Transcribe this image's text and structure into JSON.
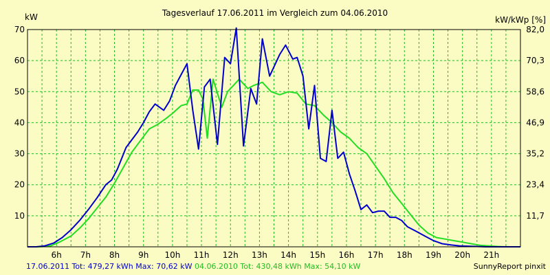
{
  "chart_data": {
    "type": "line",
    "title": "Tagesverlauf 17.06.2011 im Vergleich zum 04.06.2010",
    "ylabel_left": "kW",
    "ylabel_right": "kW/kWp [%]",
    "ylim": [
      0,
      70
    ],
    "yticks_left": [
      "10",
      "20",
      "30",
      "40",
      "50",
      "60",
      "70"
    ],
    "yticks_right": [
      "11,7",
      "23,4",
      "35,2",
      "46,9",
      "58,6",
      "70,3",
      "82,0"
    ],
    "xlim": [
      5.0,
      22.0
    ],
    "xticks": [
      "6h",
      "7h",
      "8h",
      "9h",
      "10h",
      "11h",
      "12h",
      "13h",
      "14h",
      "15h",
      "16h",
      "17h",
      "18h",
      "19h",
      "20h",
      "21h"
    ],
    "grid": true,
    "colors": {
      "background": "#fbfbc4",
      "grid": "#22bb22",
      "series1": "#0000cc",
      "series2": "#22dd22"
    },
    "series": [
      {
        "name": "17.06.2011",
        "x": [
          5.0,
          5.3,
          5.6,
          5.9,
          6.2,
          6.5,
          6.8,
          7.1,
          7.4,
          7.7,
          7.9,
          8.1,
          8.4,
          8.8,
          9.0,
          9.2,
          9.4,
          9.7,
          9.9,
          10.1,
          10.3,
          10.5,
          10.7,
          10.9,
          11.1,
          11.3,
          11.55,
          11.8,
          12.0,
          12.2,
          12.45,
          12.7,
          12.9,
          13.1,
          13.35,
          13.5,
          13.7,
          13.9,
          14.15,
          14.3,
          14.5,
          14.7,
          14.9,
          15.1,
          15.3,
          15.5,
          15.7,
          15.9,
          16.1,
          16.3,
          16.5,
          16.7,
          16.9,
          17.1,
          17.3,
          17.5,
          17.7,
          17.9,
          18.1,
          18.4,
          18.7,
          19.0,
          19.3,
          19.6,
          19.9,
          20.2,
          20.5,
          20.8,
          21.1,
          21.4,
          21.7,
          22.0
        ],
        "values": [
          0,
          0,
          0.3,
          1.2,
          3.0,
          5.5,
          8.5,
          12.0,
          15.8,
          20.0,
          21.5,
          25.0,
          32.0,
          37.0,
          40.0,
          43.5,
          46.0,
          44.0,
          47.0,
          52.0,
          55.5,
          59.0,
          44.0,
          31.5,
          51.5,
          54.0,
          33.0,
          61.0,
          59.0,
          70.5,
          32.5,
          51.0,
          46.0,
          67.0,
          55.0,
          58.0,
          62.0,
          65.0,
          60.5,
          61.0,
          55.0,
          38.0,
          52.0,
          28.5,
          27.5,
          44.0,
          28.5,
          30.5,
          23.5,
          18.0,
          12.0,
          13.5,
          11.0,
          11.5,
          11.5,
          9.5,
          9.5,
          8.5,
          6.5,
          5.0,
          3.5,
          2.0,
          1.0,
          0.6,
          0.3,
          0.2,
          0.1,
          0,
          0,
          0,
          0,
          0
        ]
      },
      {
        "name": "04.06.2010",
        "x": [
          5.0,
          5.4,
          5.8,
          6.1,
          6.5,
          6.8,
          7.1,
          7.4,
          7.7,
          8.0,
          8.3,
          8.6,
          9.0,
          9.2,
          9.5,
          9.8,
          10.0,
          10.3,
          10.5,
          10.7,
          10.9,
          11.05,
          11.2,
          11.4,
          11.7,
          11.9,
          12.1,
          12.3,
          12.6,
          12.8,
          13.1,
          13.4,
          13.7,
          14.0,
          14.3,
          14.6,
          14.9,
          15.2,
          15.5,
          15.8,
          16.1,
          16.4,
          16.7,
          17.0,
          17.3,
          17.6,
          17.9,
          18.2,
          18.5,
          18.8,
          19.1,
          19.4,
          19.7,
          20.0,
          20.3,
          20.6,
          20.9,
          21.2,
          21.5,
          21.8,
          22.0
        ],
        "values": [
          0,
          0,
          0.3,
          1.5,
          3.5,
          6.0,
          9.0,
          12.5,
          16.0,
          20.5,
          25.5,
          30.5,
          35.5,
          38.0,
          39.5,
          41.5,
          43.0,
          45.5,
          46.0,
          50.5,
          50.5,
          47.5,
          35.0,
          54.0,
          45.0,
          50.0,
          52.0,
          54.0,
          51.0,
          52.0,
          53.0,
          50.0,
          49.0,
          50.0,
          49.5,
          46.0,
          45.5,
          42.5,
          40.0,
          37.0,
          35.0,
          32.0,
          30.0,
          26.0,
          22.0,
          17.5,
          14.0,
          10.5,
          7.0,
          4.5,
          3.0,
          2.5,
          2.0,
          1.5,
          1.0,
          0.5,
          0.3,
          0.1,
          0,
          0,
          0
        ]
      }
    ]
  },
  "footer": {
    "series1_label": "17.06.2011 Tot: 479,27 kWh Max: 70,62 kW",
    "series2_label": "04.06.2010 Tot: 430,48 kWh Max: 54,10 kW",
    "brand": "SunnyReport pinxit"
  }
}
